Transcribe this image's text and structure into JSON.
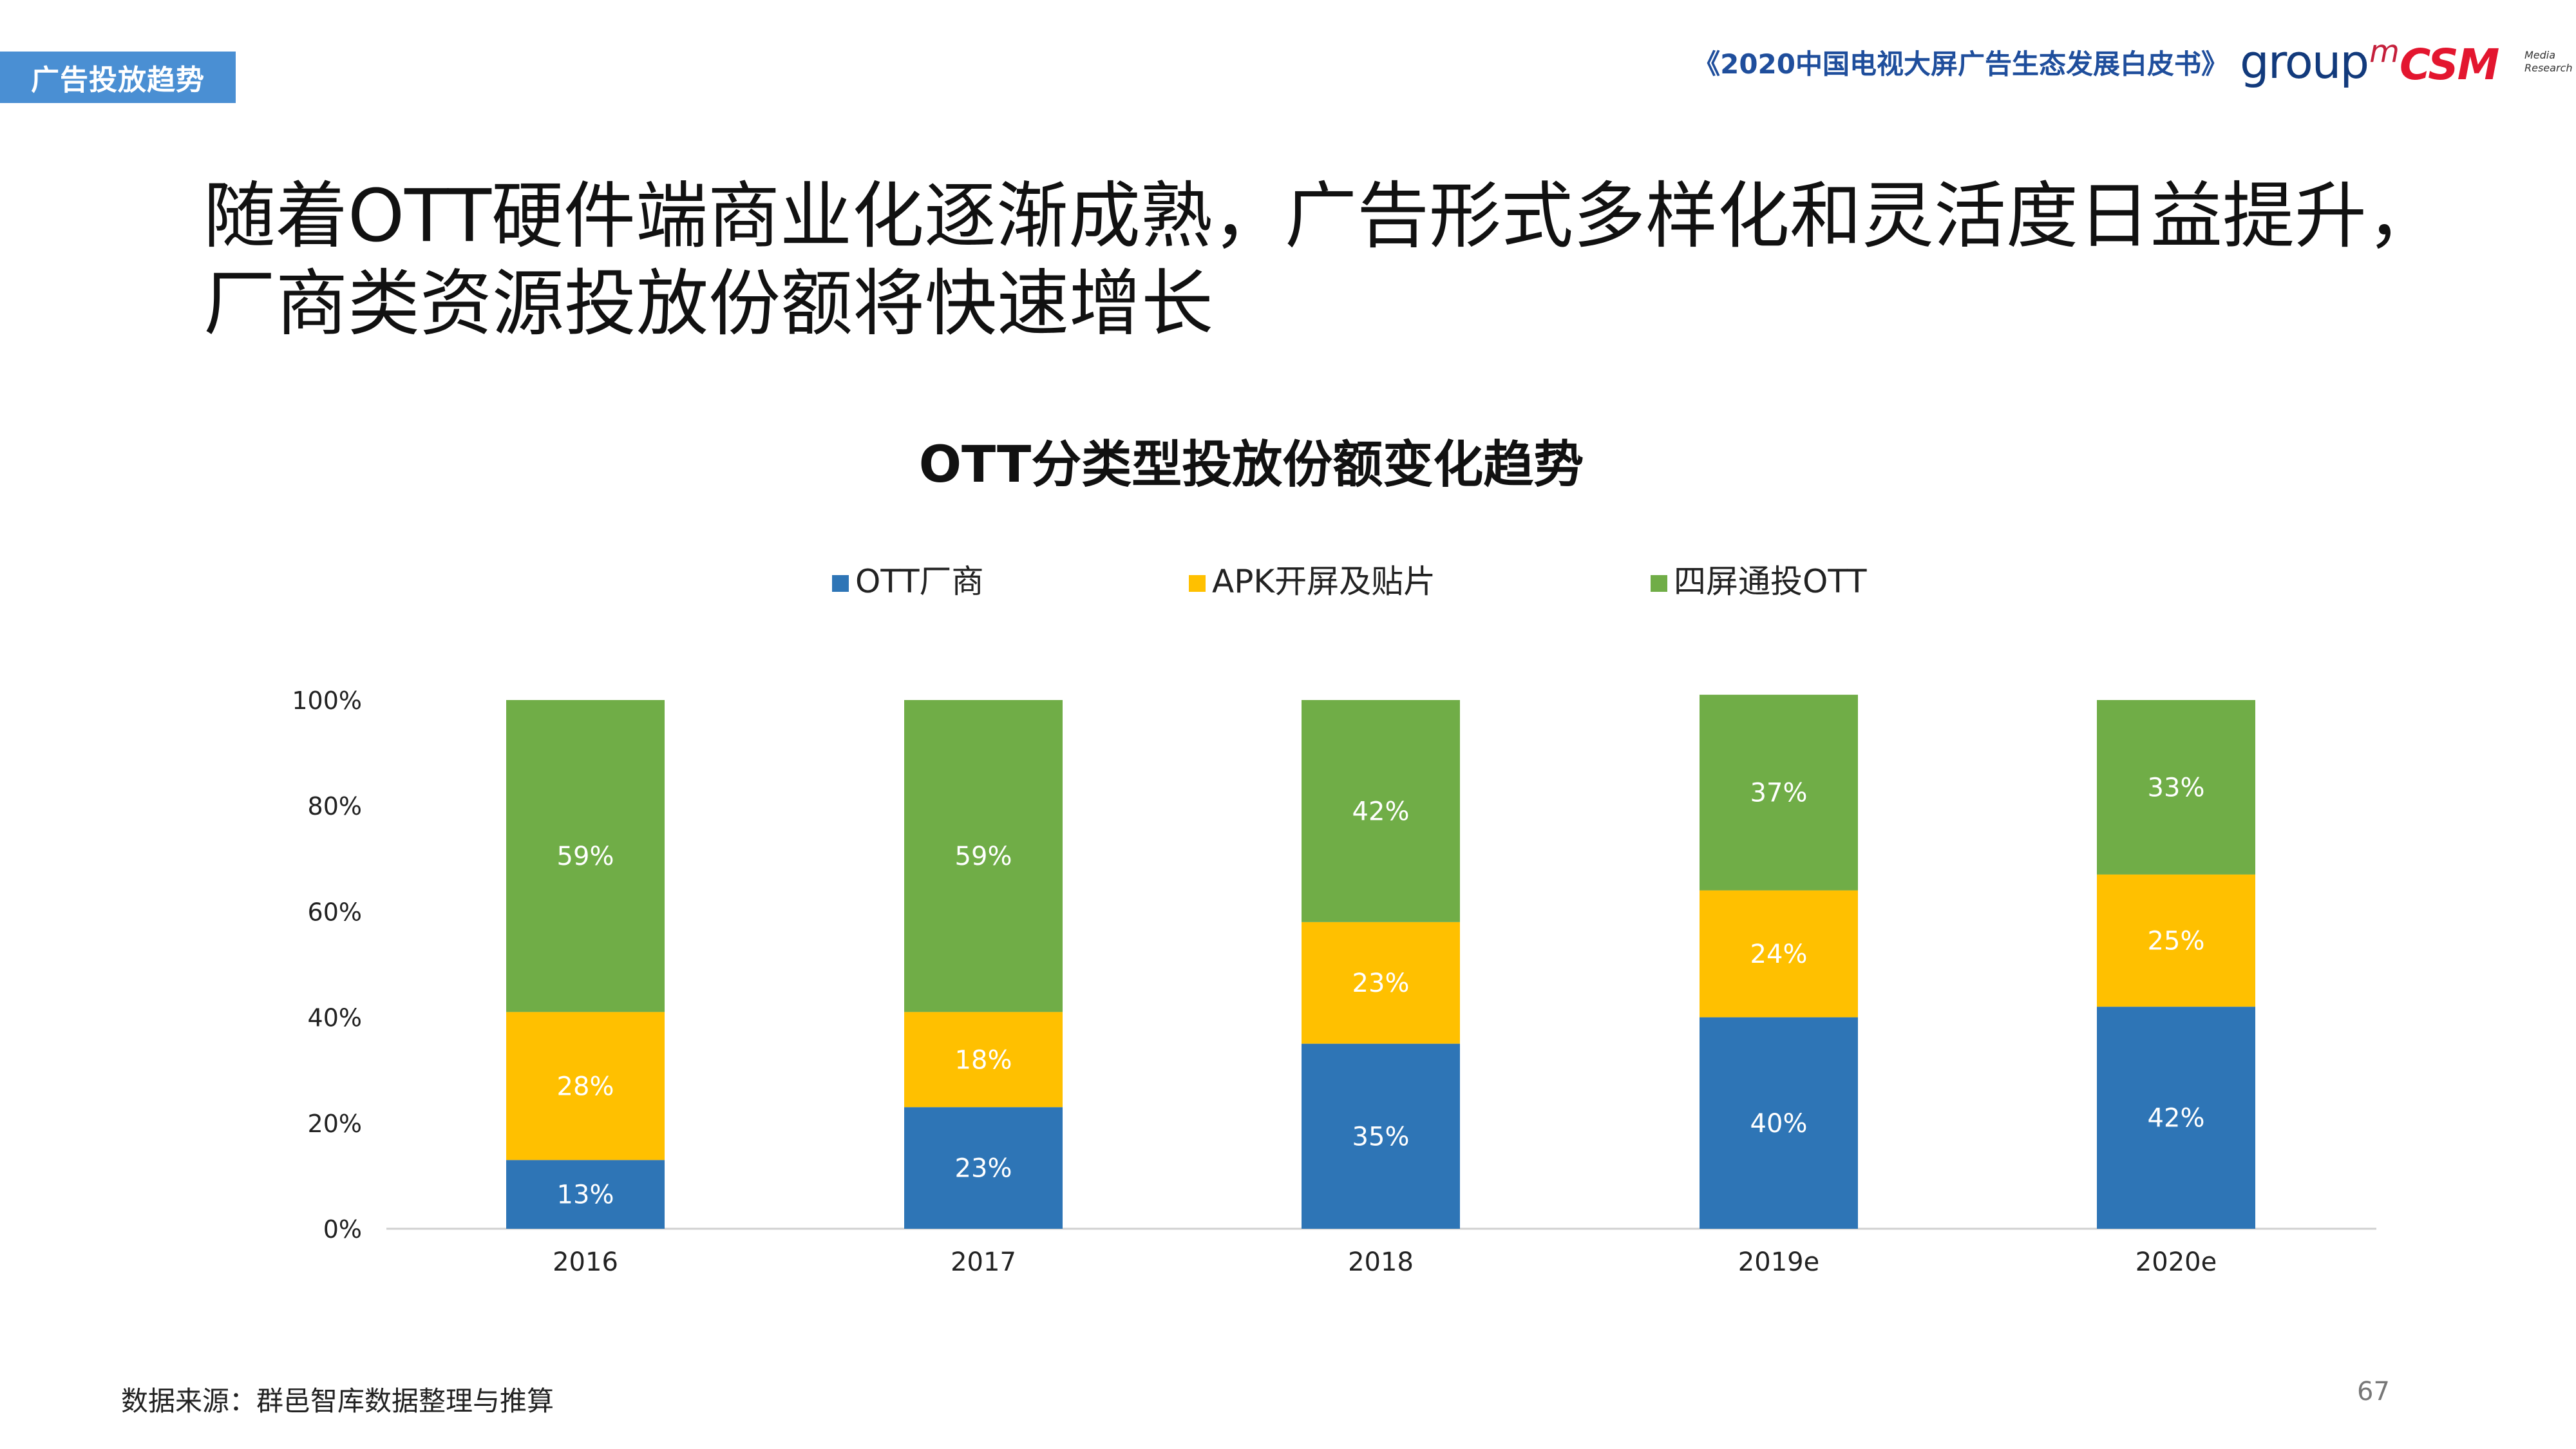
{
  "header": {
    "section_tag": "广告投放趋势",
    "report_title": "《2020中国电视大屏广告生态发展白皮书》",
    "logo_groupm_text": "group",
    "logo_groupm_sup": "m",
    "logo_csm_text": "CSM",
    "logo_csm_sub": "Media Research"
  },
  "headline": "随着OTT硬件端商业化逐渐成熟，广告形式多样化和灵活度日益提升，厂商类资源投放份额将快速增长",
  "chart_data": {
    "type": "bar",
    "stacked": true,
    "title": "OTT分类型投放份额变化趋势",
    "categories": [
      "2016",
      "2017",
      "2018",
      "2019e",
      "2020e"
    ],
    "series": [
      {
        "name": "OTT厂商",
        "color": "#2e75b6",
        "values": [
          13,
          23,
          35,
          40,
          42
        ],
        "labels": [
          "13%",
          "23%",
          "35%",
          "40%",
          "42%"
        ]
      },
      {
        "name": "APK开屏及贴片",
        "color": "#ffc000",
        "values": [
          28,
          18,
          23,
          24,
          25
        ],
        "labels": [
          "28%",
          "18%",
          "23%",
          "24%",
          "25%"
        ]
      },
      {
        "name": "四屏通投OTT",
        "color": "#70ad47",
        "values": [
          59,
          59,
          42,
          37,
          33
        ],
        "labels": [
          "59%",
          "59%",
          "42%",
          "37%",
          "33%"
        ]
      }
    ],
    "ylim": [
      0,
      100
    ],
    "yticks": [
      "0%",
      "20%",
      "40%",
      "60%",
      "80%",
      "100%"
    ],
    "grid": false,
    "legend": "top"
  },
  "footer": {
    "source": "数据来源：群邑智库数据整理与推算",
    "page_number": "67"
  }
}
